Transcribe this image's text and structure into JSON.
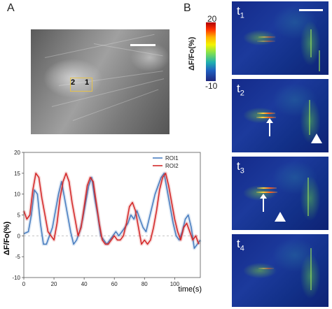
{
  "panels": {
    "a": "A",
    "b": "B"
  },
  "micrograph": {
    "roi_labels": [
      "2",
      "1"
    ]
  },
  "colorbar": {
    "title": "ΔF/Fo(%)",
    "max": "20",
    "min": "-10"
  },
  "frames": [
    {
      "t": "t",
      "sub": "1"
    },
    {
      "t": "t",
      "sub": "2"
    },
    {
      "t": "t",
      "sub": "3"
    },
    {
      "t": "t",
      "sub": "4"
    }
  ],
  "chart_data": {
    "type": "line",
    "ylabel": "ΔF/Fo(%)",
    "xlabel": "time(s)",
    "xlim": [
      0,
      117
    ],
    "ylim": [
      -10,
      20
    ],
    "xticks": [
      0,
      20,
      40,
      60,
      80,
      100
    ],
    "yticks": [
      -10,
      -5,
      0,
      5,
      10,
      15,
      20
    ],
    "legend_position": "top-right",
    "series": [
      {
        "name": "ROI1",
        "color": "#4a7fc1",
        "x": [
          0,
          3,
          5,
          7,
          9,
          11,
          13,
          15,
          17,
          19,
          21,
          23,
          25,
          27,
          29,
          31,
          33,
          35,
          37,
          39,
          41,
          43,
          45,
          47,
          49,
          51,
          53,
          55,
          57,
          59,
          61,
          63,
          65,
          67,
          69,
          71,
          73,
          75,
          77,
          79,
          81,
          83,
          85,
          87,
          89,
          91,
          93,
          95,
          97,
          99,
          101,
          103,
          105,
          107,
          109,
          111,
          113,
          115,
          117
        ],
        "y": [
          0.5,
          1,
          5,
          11,
          10,
          3,
          -2,
          -2,
          0,
          2,
          6,
          10,
          13,
          9,
          5,
          1,
          -2,
          -1,
          1,
          4,
          8,
          12,
          14,
          9,
          5,
          0,
          -1,
          -2,
          -1,
          0,
          1,
          0,
          1,
          2,
          3,
          5,
          4,
          6,
          4,
          2,
          1,
          4,
          7,
          10,
          12,
          14,
          15,
          11,
          7,
          3,
          0,
          -1,
          1,
          4,
          5,
          2,
          -3,
          -2,
          -1
        ]
      },
      {
        "name": "ROI2",
        "color": "#d42a2a",
        "x": [
          0,
          2,
          4,
          6,
          8,
          10,
          12,
          14,
          16,
          18,
          20,
          22,
          24,
          26,
          28,
          30,
          32,
          34,
          36,
          38,
          40,
          42,
          44,
          46,
          48,
          50,
          52,
          54,
          56,
          58,
          60,
          62,
          64,
          66,
          68,
          70,
          72,
          74,
          76,
          78,
          80,
          82,
          84,
          86,
          88,
          90,
          92,
          94,
          96,
          98,
          100,
          102,
          104,
          106,
          108,
          110,
          112,
          114,
          116
        ],
        "y": [
          6,
          4,
          5,
          11,
          15,
          14,
          9,
          5,
          1,
          0,
          -1,
          3,
          9,
          13,
          15,
          13,
          8,
          4,
          0,
          2,
          7,
          12,
          14,
          13,
          8,
          3,
          -1,
          -2,
          -2,
          -1,
          0,
          -1,
          -1,
          0,
          3,
          7,
          8,
          6,
          2,
          -2,
          -1,
          -2,
          -1,
          2,
          6,
          11,
          14,
          15,
          12,
          8,
          4,
          1,
          -1,
          2,
          3,
          1,
          -1,
          0,
          -2
        ]
      }
    ]
  }
}
